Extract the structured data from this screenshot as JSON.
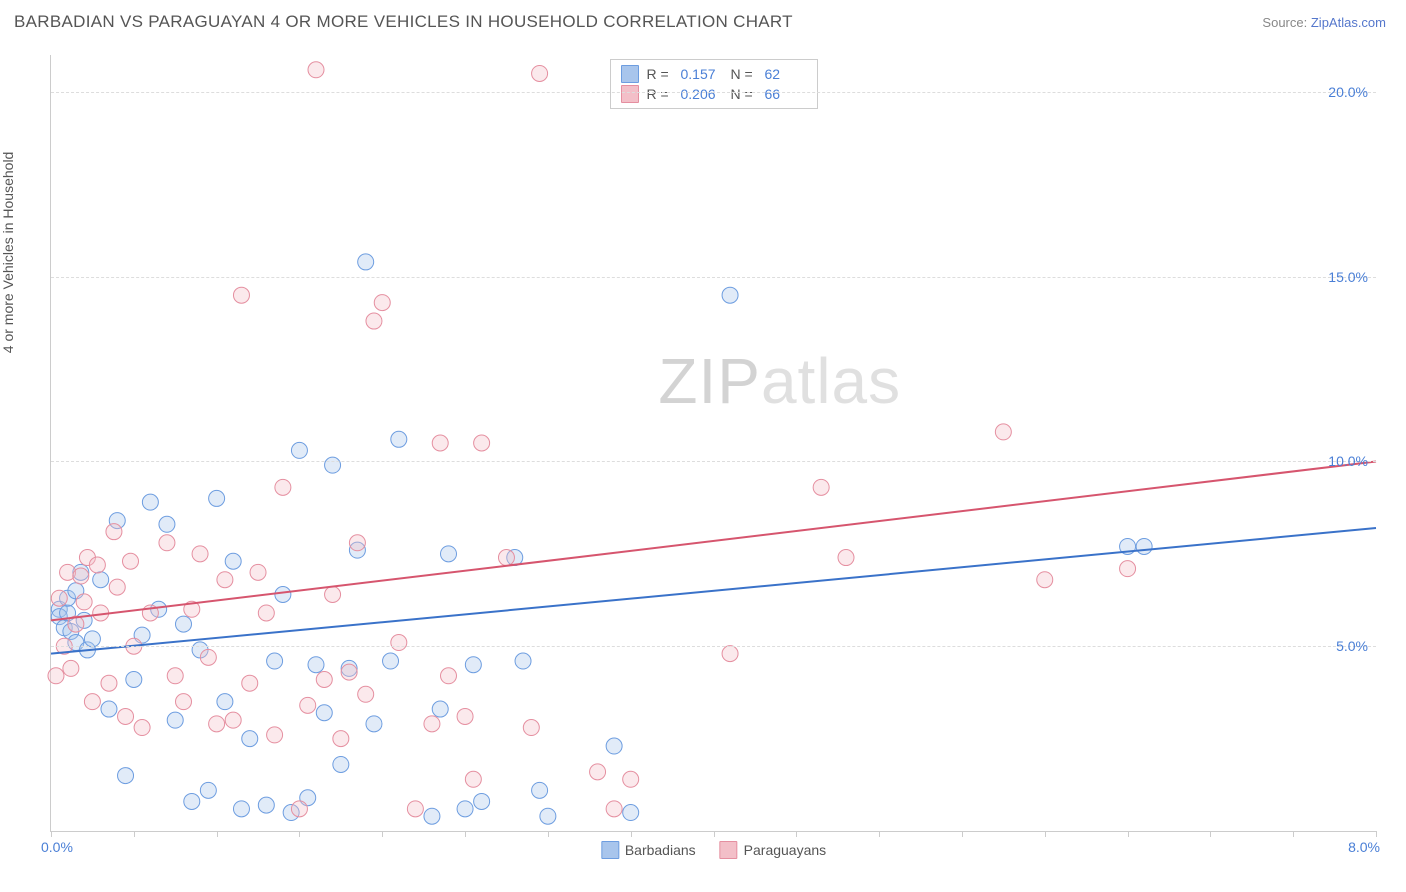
{
  "title": "BARBADIAN VS PARAGUAYAN 4 OR MORE VEHICLES IN HOUSEHOLD CORRELATION CHART",
  "source_label": "Source:",
  "source_link": "ZipAtlas.com",
  "y_axis_label": "4 or more Vehicles in Household",
  "x_origin": "0.0%",
  "x_max": "8.0%",
  "watermark_bold": "ZIP",
  "watermark_thin": "atlas",
  "chart": {
    "type": "scatter",
    "xlim": [
      0,
      8
    ],
    "ylim": [
      0,
      21
    ],
    "y_ticks": [
      5,
      10,
      15,
      20
    ],
    "y_tick_labels": [
      "5.0%",
      "10.0%",
      "15.0%",
      "20.0%"
    ],
    "x_tick_step": 0.5,
    "background_color": "#ffffff",
    "grid_color": "#dddddd",
    "axis_color": "#cccccc",
    "tick_label_color": "#4a7fd6",
    "marker_radius": 8,
    "marker_opacity": 0.35,
    "line_width": 2,
    "series": [
      {
        "name": "Barbadians",
        "color_fill": "#a8c5ec",
        "color_stroke": "#6d9de0",
        "line_color": "#3a72c9",
        "R": "0.157",
        "N": "62",
        "trend": {
          "x1": 0,
          "y1": 4.8,
          "x2": 8,
          "y2": 8.2
        },
        "points": [
          [
            0.05,
            6.0
          ],
          [
            0.05,
            5.8
          ],
          [
            0.08,
            5.5
          ],
          [
            0.1,
            5.9
          ],
          [
            0.1,
            6.3
          ],
          [
            0.12,
            5.4
          ],
          [
            0.15,
            6.5
          ],
          [
            0.15,
            5.1
          ],
          [
            0.18,
            7.0
          ],
          [
            0.2,
            5.7
          ],
          [
            0.22,
            4.9
          ],
          [
            0.25,
            5.2
          ],
          [
            0.3,
            6.8
          ],
          [
            0.35,
            3.3
          ],
          [
            0.4,
            8.4
          ],
          [
            0.45,
            1.5
          ],
          [
            0.5,
            4.1
          ],
          [
            0.55,
            5.3
          ],
          [
            0.6,
            8.9
          ],
          [
            0.65,
            6.0
          ],
          [
            0.7,
            8.3
          ],
          [
            0.75,
            3.0
          ],
          [
            0.8,
            5.6
          ],
          [
            0.85,
            0.8
          ],
          [
            0.9,
            4.9
          ],
          [
            0.95,
            1.1
          ],
          [
            1.0,
            9.0
          ],
          [
            1.05,
            3.5
          ],
          [
            1.1,
            7.3
          ],
          [
            1.15,
            0.6
          ],
          [
            1.2,
            2.5
          ],
          [
            1.3,
            0.7
          ],
          [
            1.35,
            4.6
          ],
          [
            1.4,
            6.4
          ],
          [
            1.45,
            0.5
          ],
          [
            1.5,
            10.3
          ],
          [
            1.55,
            0.9
          ],
          [
            1.6,
            4.5
          ],
          [
            1.65,
            3.2
          ],
          [
            1.7,
            9.9
          ],
          [
            1.75,
            1.8
          ],
          [
            1.8,
            4.4
          ],
          [
            1.85,
            7.6
          ],
          [
            1.9,
            15.4
          ],
          [
            1.95,
            2.9
          ],
          [
            2.05,
            4.6
          ],
          [
            2.1,
            10.6
          ],
          [
            2.3,
            0.4
          ],
          [
            2.35,
            3.3
          ],
          [
            2.4,
            7.5
          ],
          [
            2.5,
            0.6
          ],
          [
            2.55,
            4.5
          ],
          [
            2.6,
            0.8
          ],
          [
            2.8,
            7.4
          ],
          [
            2.85,
            4.6
          ],
          [
            2.95,
            1.1
          ],
          [
            3.0,
            0.4
          ],
          [
            3.4,
            2.3
          ],
          [
            3.5,
            0.5
          ],
          [
            4.1,
            14.5
          ],
          [
            6.5,
            7.7
          ],
          [
            6.6,
            7.7
          ]
        ]
      },
      {
        "name": "Paraguayans",
        "color_fill": "#f3bfc8",
        "color_stroke": "#e58fa0",
        "line_color": "#d6556e",
        "R": "0.206",
        "N": "66",
        "trend": {
          "x1": 0,
          "y1": 5.7,
          "x2": 8,
          "y2": 10.0
        },
        "points": [
          [
            0.03,
            4.2
          ],
          [
            0.05,
            6.3
          ],
          [
            0.08,
            5.0
          ],
          [
            0.1,
            7.0
          ],
          [
            0.12,
            4.4
          ],
          [
            0.15,
            5.6
          ],
          [
            0.18,
            6.9
          ],
          [
            0.2,
            6.2
          ],
          [
            0.22,
            7.4
          ],
          [
            0.25,
            3.5
          ],
          [
            0.28,
            7.2
          ],
          [
            0.3,
            5.9
          ],
          [
            0.35,
            4.0
          ],
          [
            0.38,
            8.1
          ],
          [
            0.4,
            6.6
          ],
          [
            0.45,
            3.1
          ],
          [
            0.48,
            7.3
          ],
          [
            0.5,
            5.0
          ],
          [
            0.55,
            2.8
          ],
          [
            0.6,
            5.9
          ],
          [
            0.7,
            7.8
          ],
          [
            0.75,
            4.2
          ],
          [
            0.8,
            3.5
          ],
          [
            0.85,
            6.0
          ],
          [
            0.9,
            7.5
          ],
          [
            0.95,
            4.7
          ],
          [
            1.0,
            2.9
          ],
          [
            1.05,
            6.8
          ],
          [
            1.1,
            3.0
          ],
          [
            1.15,
            14.5
          ],
          [
            1.2,
            4.0
          ],
          [
            1.25,
            7.0
          ],
          [
            1.3,
            5.9
          ],
          [
            1.35,
            2.6
          ],
          [
            1.4,
            9.3
          ],
          [
            1.5,
            0.6
          ],
          [
            1.55,
            3.4
          ],
          [
            1.6,
            20.6
          ],
          [
            1.65,
            4.1
          ],
          [
            1.7,
            6.4
          ],
          [
            1.75,
            2.5
          ],
          [
            1.8,
            4.3
          ],
          [
            1.85,
            7.8
          ],
          [
            1.9,
            3.7
          ],
          [
            1.95,
            13.8
          ],
          [
            2.0,
            14.3
          ],
          [
            2.1,
            5.1
          ],
          [
            2.2,
            0.6
          ],
          [
            2.3,
            2.9
          ],
          [
            2.35,
            10.5
          ],
          [
            2.4,
            4.2
          ],
          [
            2.5,
            3.1
          ],
          [
            2.55,
            1.4
          ],
          [
            2.6,
            10.5
          ],
          [
            2.75,
            7.4
          ],
          [
            2.9,
            2.8
          ],
          [
            2.95,
            20.5
          ],
          [
            3.3,
            1.6
          ],
          [
            3.4,
            0.6
          ],
          [
            3.5,
            1.4
          ],
          [
            4.1,
            4.8
          ],
          [
            4.65,
            9.3
          ],
          [
            4.8,
            7.4
          ],
          [
            5.75,
            10.8
          ],
          [
            6.0,
            6.8
          ],
          [
            6.5,
            7.1
          ]
        ]
      }
    ]
  },
  "stats_box": {
    "R_label": "R =",
    "N_label": "N ="
  }
}
